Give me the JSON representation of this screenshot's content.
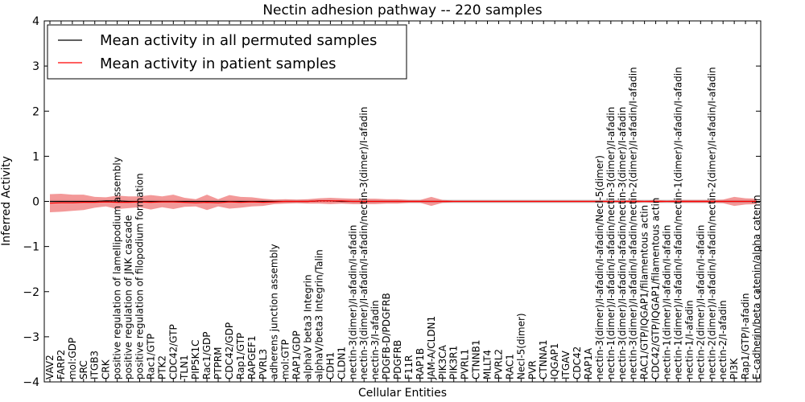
{
  "chart_data": {
    "type": "line",
    "title": "Nectin adhesion pathway -- 220 samples",
    "xlabel": "Cellular Entities",
    "ylabel": "Inferred Activity",
    "ylim": [
      -4,
      4
    ],
    "yticks": [
      -4,
      -3,
      -2,
      -1,
      0,
      1,
      2,
      3,
      4
    ],
    "ytick_labels": [
      "−4",
      "−3",
      "−2",
      "−1",
      "0",
      "1",
      "2",
      "3",
      "4"
    ],
    "legend_location": "top-left",
    "categories": [
      "VAV2",
      "FARP2",
      "mol:GDP",
      "SRC",
      "ITGB3",
      "CRK",
      "positive regulation of lamellipodium assembly",
      "positive regulation of JNK cascade",
      "positive regulation of filopodium formation",
      "Rac1/GTP",
      "PTK2",
      "CDC42/GTP",
      "TLN1",
      "PIP5K1C",
      "Rac1/GDP",
      "PTPRM",
      "CDC42/GDP",
      "Rap1/GTP",
      "RAPGEF1",
      "PVRL3",
      "adherens junction assembly",
      "mol:GTP",
      "RAP1/GDP",
      "alphaV beta3 Integrin",
      "alphaV/beta3 Integrin/Talin",
      "CDH1",
      "CLDN1",
      "nectin-3(dimer)/I-afadin/I-afadin",
      "nectin-3(dimer)/I-afadin/I-afadin/nectin-3(dimer)/I-afadin",
      "nectin-3/I-afadin",
      "PDGFB-D/PDGFRB",
      "PDGFRB",
      "F11R",
      "RAP1B",
      "JAM-A/CLDN1",
      "PIK3CA",
      "PIK3R1",
      "PVRL1",
      "CTNNB1",
      "MLLT4",
      "PVRL2",
      "RAC1",
      "Necl-5(dimer)",
      "PVR",
      "CTNNA1",
      "IQGAP1",
      "ITGAV",
      "CDC42",
      "RAP1A",
      "nectin-3(dimer)/I-afadin/I-afadin/Necl-5(dimer)",
      "nectin-1(dimer)/I-afadin/I-afadin/nectin-3(dimer)/I-afadin",
      "nectin-3(dimer)/I-afadin/I-afadin/nectin-3(dimer)/I-afadin",
      "nectin-3(dimer)/I-afadin/I-afadin/nectin-2(dimer)/I-afadin/I-afadin",
      "RAC1/GTP/IQGAP1/filamentous actin",
      "CDC42/GTP/IQGAP1/filamentous actin",
      "nectin-1(dimer)/I-afadin/I-afadin",
      "nectin-1(dimer)/I-afadin/I-afadin/nectin-1(dimer)/I-afadin/I-afadin",
      "nectin-1/I-afadin",
      "nectin-2(dimer)/I-afadin/I-afadin",
      "nectin-2(dimer)/I-afadin/I-afadin/nectin-2(dimer)/I-afadin/I-afadin",
      "nectin-2/I-afadin",
      "PI3K",
      "Rap1/GTP/I-afadin",
      "E-cadherin/beta catenin/alpha catenin"
    ],
    "series": [
      {
        "name": "Mean activity in all permuted samples",
        "color": "#000000",
        "values": [
          0.0,
          0.0,
          0.0,
          0.0,
          0.0,
          0.01,
          0.01,
          0.0,
          0.0,
          0.0,
          0.0,
          0.0,
          0.0,
          0.0,
          0.0,
          0.0,
          0.0,
          0.0,
          0.0,
          0.0,
          0.0,
          0.0,
          0.0,
          0.0,
          0.01,
          0.01,
          0.0,
          0.0,
          0.0,
          0.0,
          0.0,
          0.0,
          0.0,
          0.0,
          0.0,
          0.0,
          0.0,
          0.0,
          0.0,
          0.0,
          0.0,
          0.0,
          0.0,
          0.0,
          0.0,
          0.0,
          0.0,
          0.0,
          0.0,
          0.0,
          0.0,
          0.0,
          0.0,
          0.0,
          0.0,
          0.0,
          0.0,
          0.0,
          0.0,
          0.0,
          0.0,
          0.0,
          0.0,
          0.0
        ],
        "std_band": [
          0.04,
          0.04,
          0.04,
          0.04,
          0.04,
          0.04,
          0.04,
          0.04,
          0.04,
          0.04,
          0.04,
          0.04,
          0.04,
          0.04,
          0.04,
          0.04,
          0.04,
          0.04,
          0.04,
          0.04,
          0.04,
          0.04,
          0.04,
          0.04,
          0.04,
          0.04,
          0.04,
          0.04,
          0.04,
          0.04,
          0.04,
          0.04,
          0.04,
          0.04,
          0.04,
          0.04,
          0.04,
          0.04,
          0.04,
          0.04,
          0.04,
          0.04,
          0.04,
          0.04,
          0.04,
          0.04,
          0.04,
          0.04,
          0.04,
          0.04,
          0.04,
          0.04,
          0.04,
          0.04,
          0.04,
          0.04,
          0.04,
          0.04,
          0.04,
          0.04,
          0.04,
          0.04,
          0.04,
          0.04
        ],
        "band_color": "#c8c8c8"
      },
      {
        "name": "Mean activity in patient samples",
        "color": "#ff0000",
        "values": [
          -0.04,
          -0.03,
          -0.03,
          -0.02,
          -0.02,
          -0.01,
          -0.02,
          -0.02,
          -0.01,
          -0.02,
          -0.01,
          -0.01,
          -0.02,
          -0.03,
          -0.02,
          -0.03,
          -0.01,
          -0.02,
          -0.01,
          -0.02,
          -0.01,
          0.0,
          0.0,
          0.0,
          0.01,
          0.01,
          0.01,
          0.0,
          0.0,
          0.0,
          0.0,
          0.0,
          0.0,
          0.0,
          0.0,
          0.0,
          0.0,
          0.0,
          0.0,
          0.0,
          0.0,
          0.0,
          0.0,
          0.0,
          0.0,
          0.0,
          0.0,
          0.0,
          0.0,
          0.0,
          0.0,
          0.0,
          0.0,
          0.0,
          0.0,
          0.0,
          0.0,
          0.0,
          0.0,
          0.0,
          0.0,
          0.0,
          0.0,
          0.0
        ],
        "std_band": [
          0.2,
          0.2,
          0.18,
          0.17,
          0.12,
          0.1,
          0.15,
          0.13,
          0.12,
          0.16,
          0.12,
          0.16,
          0.1,
          0.08,
          0.17,
          0.08,
          0.15,
          0.12,
          0.1,
          0.08,
          0.05,
          0.05,
          0.04,
          0.05,
          0.06,
          0.07,
          0.06,
          0.06,
          0.06,
          0.06,
          0.05,
          0.05,
          0.03,
          0.03,
          0.1,
          0.03,
          0.02,
          0.02,
          0.02,
          0.02,
          0.02,
          0.02,
          0.02,
          0.02,
          0.02,
          0.02,
          0.02,
          0.02,
          0.02,
          0.02,
          0.02,
          0.02,
          0.03,
          0.02,
          0.03,
          0.02,
          0.03,
          0.03,
          0.03,
          0.03,
          0.04,
          0.1,
          0.07,
          0.06
        ],
        "band_color": "#f08080"
      }
    ]
  }
}
